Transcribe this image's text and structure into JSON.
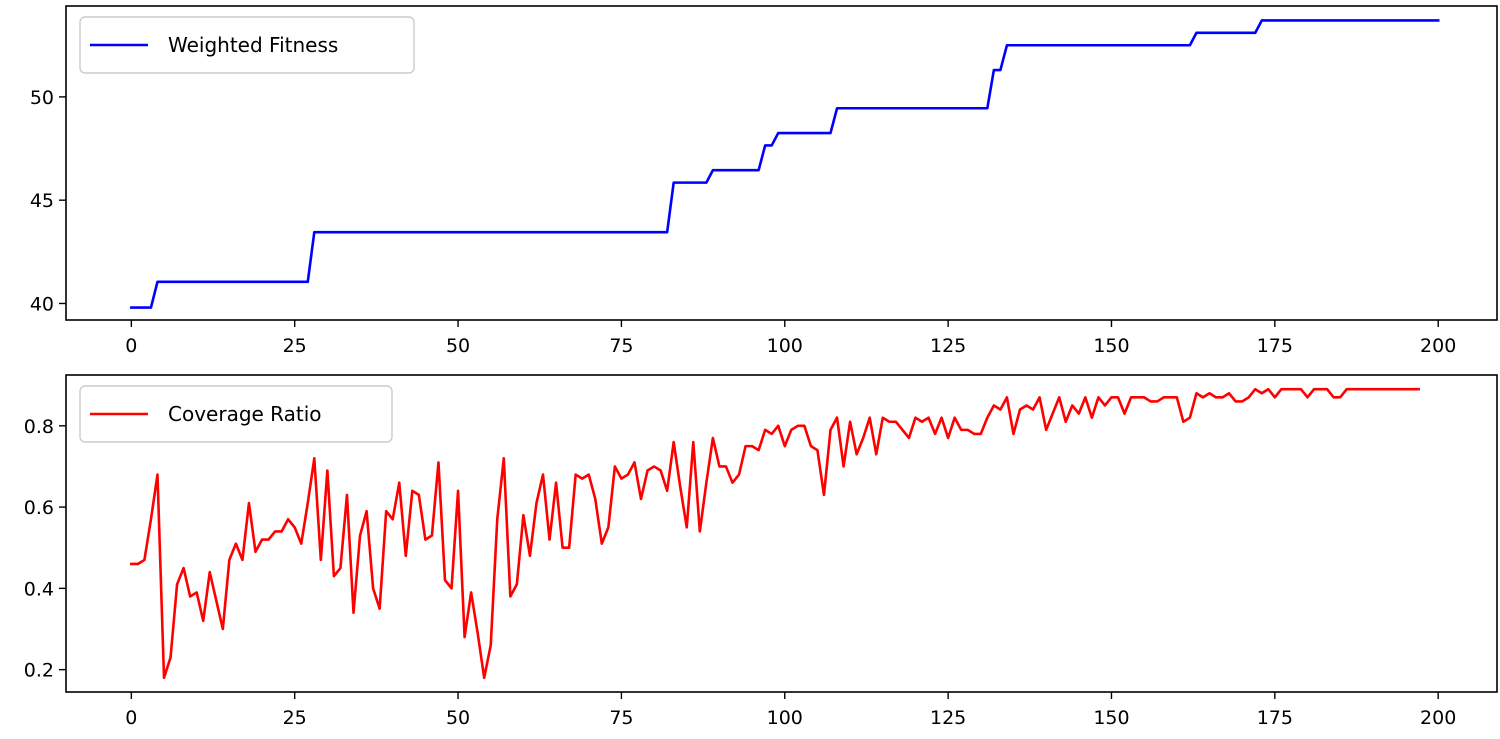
{
  "chart_data": [
    {
      "type": "line",
      "title": "",
      "xlabel": "",
      "ylabel": "",
      "xlim": [
        -10,
        209
      ],
      "ylim": [
        39.2,
        54.4
      ],
      "xticks": [
        0,
        25,
        50,
        75,
        100,
        125,
        150,
        175,
        200
      ],
      "yticks": [
        40,
        45,
        50
      ],
      "grid": false,
      "legend_position": "top-left",
      "series": [
        {
          "name": "Weighted Fitness",
          "color": "#0000ff",
          "values": [
            39.8,
            39.8,
            39.8,
            39.8,
            41.05,
            41.05,
            41.05,
            41.05,
            41.05,
            41.05,
            41.05,
            41.05,
            41.05,
            41.05,
            41.05,
            41.05,
            41.05,
            41.05,
            41.05,
            41.05,
            41.05,
            41.05,
            41.05,
            41.05,
            41.05,
            41.05,
            41.05,
            41.05,
            43.45,
            43.45,
            43.45,
            43.45,
            43.45,
            43.45,
            43.45,
            43.45,
            43.45,
            43.45,
            43.45,
            43.45,
            43.45,
            43.45,
            43.45,
            43.45,
            43.45,
            43.45,
            43.45,
            43.45,
            43.45,
            43.45,
            43.45,
            43.45,
            43.45,
            43.45,
            43.45,
            43.45,
            43.45,
            43.45,
            43.45,
            43.45,
            43.45,
            43.45,
            43.45,
            43.45,
            43.45,
            43.45,
            43.45,
            43.45,
            43.45,
            43.45,
            43.45,
            43.45,
            43.45,
            43.45,
            43.45,
            43.45,
            43.45,
            43.45,
            43.45,
            43.45,
            43.45,
            43.45,
            43.45,
            45.85,
            45.85,
            45.85,
            45.85,
            45.85,
            45.85,
            46.45,
            46.45,
            46.45,
            46.45,
            46.45,
            46.45,
            46.45,
            46.45,
            47.65,
            47.65,
            48.25,
            48.25,
            48.25,
            48.25,
            48.25,
            48.25,
            48.25,
            48.25,
            48.25,
            49.45,
            49.45,
            49.45,
            49.45,
            49.45,
            49.45,
            49.45,
            49.45,
            49.45,
            49.45,
            49.45,
            49.45,
            49.45,
            49.45,
            49.45,
            49.45,
            49.45,
            49.45,
            49.45,
            49.45,
            49.45,
            49.45,
            49.45,
            49.45,
            51.3,
            51.3,
            52.5,
            52.5,
            52.5,
            52.5,
            52.5,
            52.5,
            52.5,
            52.5,
            52.5,
            52.5,
            52.5,
            52.5,
            52.5,
            52.5,
            52.5,
            52.5,
            52.5,
            52.5,
            52.5,
            52.5,
            52.5,
            52.5,
            52.5,
            52.5,
            52.5,
            52.5,
            52.5,
            52.5,
            52.5,
            53.1,
            53.1,
            53.1,
            53.1,
            53.1,
            53.1,
            53.1,
            53.1,
            53.1,
            53.1,
            53.7,
            53.7,
            53.7,
            53.7,
            53.7,
            53.7,
            53.7,
            53.7,
            53.7,
            53.7,
            53.7,
            53.7,
            53.7,
            53.7,
            53.7,
            53.7,
            53.7,
            53.7,
            53.7,
            53.7,
            53.7,
            53.7,
            53.7,
            53.7,
            53.7,
            53.7,
            53.7,
            53.7
          ]
        }
      ]
    },
    {
      "type": "line",
      "title": "",
      "xlabel": "",
      "ylabel": "",
      "xlim": [
        -10,
        209
      ],
      "ylim": [
        0.145,
        0.925
      ],
      "xticks": [
        0,
        25,
        50,
        75,
        100,
        125,
        150,
        175,
        200
      ],
      "yticks": [
        0.2,
        0.4,
        0.6,
        0.8
      ],
      "grid": false,
      "legend_position": "top-left",
      "series": [
        {
          "name": "Coverage Ratio",
          "color": "#ff0000",
          "values": [
            0.46,
            0.46,
            0.47,
            0.57,
            0.68,
            0.18,
            0.23,
            0.41,
            0.45,
            0.38,
            0.39,
            0.32,
            0.44,
            0.37,
            0.3,
            0.47,
            0.51,
            0.47,
            0.61,
            0.49,
            0.52,
            0.52,
            0.54,
            0.54,
            0.57,
            0.55,
            0.51,
            0.61,
            0.72,
            0.47,
            0.69,
            0.43,
            0.45,
            0.63,
            0.34,
            0.53,
            0.59,
            0.4,
            0.35,
            0.59,
            0.57,
            0.66,
            0.48,
            0.64,
            0.63,
            0.52,
            0.53,
            0.71,
            0.42,
            0.4,
            0.64,
            0.28,
            0.39,
            0.29,
            0.18,
            0.26,
            0.57,
            0.72,
            0.38,
            0.41,
            0.58,
            0.48,
            0.61,
            0.68,
            0.52,
            0.66,
            0.5,
            0.5,
            0.68,
            0.67,
            0.68,
            0.62,
            0.51,
            0.55,
            0.7,
            0.67,
            0.68,
            0.71,
            0.62,
            0.69,
            0.7,
            0.69,
            0.64,
            0.76,
            0.65,
            0.55,
            0.76,
            0.54,
            0.66,
            0.77,
            0.7,
            0.7,
            0.66,
            0.68,
            0.75,
            0.75,
            0.74,
            0.79,
            0.78,
            0.8,
            0.75,
            0.79,
            0.8,
            0.8,
            0.75,
            0.74,
            0.63,
            0.79,
            0.82,
            0.7,
            0.81,
            0.73,
            0.77,
            0.82,
            0.73,
            0.82,
            0.81,
            0.81,
            0.79,
            0.77,
            0.82,
            0.81,
            0.82,
            0.78,
            0.82,
            0.77,
            0.82,
            0.79,
            0.79,
            0.78,
            0.78,
            0.82,
            0.85,
            0.84,
            0.87,
            0.78,
            0.84,
            0.85,
            0.84,
            0.87,
            0.79,
            0.83,
            0.87,
            0.81,
            0.85,
            0.83,
            0.87,
            0.82,
            0.87,
            0.85,
            0.87,
            0.87,
            0.83,
            0.87,
            0.87,
            0.87,
            0.86,
            0.86,
            0.87,
            0.87,
            0.87,
            0.81,
            0.82,
            0.88,
            0.87,
            0.88,
            0.87,
            0.87,
            0.88,
            0.86,
            0.86,
            0.87,
            0.89,
            0.88,
            0.89,
            0.87,
            0.89,
            0.89,
            0.89,
            0.89,
            0.87,
            0.89,
            0.89,
            0.89,
            0.87,
            0.87,
            0.89,
            0.89,
            0.89,
            0.89,
            0.89,
            0.89,
            0.89,
            0.89,
            0.89,
            0.89,
            0.89,
            0.89
          ]
        }
      ]
    }
  ]
}
